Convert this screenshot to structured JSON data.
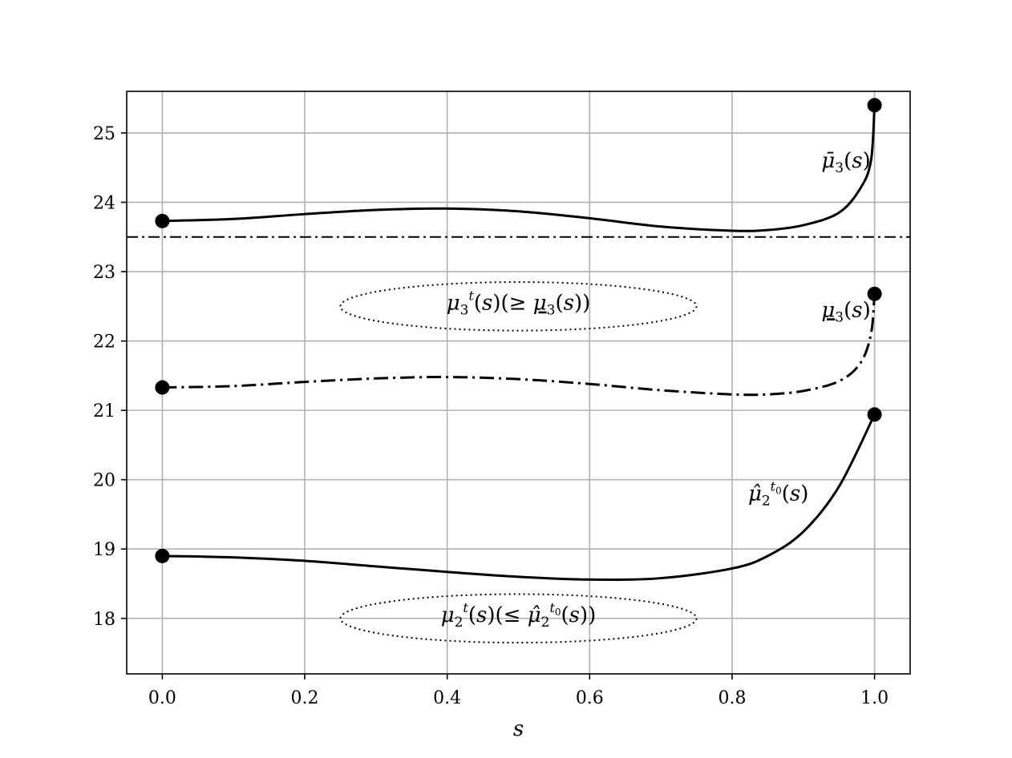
{
  "chart_data": {
    "type": "line",
    "xlabel": "s",
    "ylabel": "",
    "xlim": [
      -0.05,
      1.05
    ],
    "ylim": [
      17.2,
      25.6
    ],
    "xticks": [
      0.0,
      0.2,
      0.4,
      0.6,
      0.8,
      1.0
    ],
    "xtick_labels": [
      "0.0",
      "0.2",
      "0.4",
      "0.6",
      "0.8",
      "1.0"
    ],
    "yticks": [
      18,
      19,
      20,
      21,
      22,
      23,
      24,
      25
    ],
    "ytick_labels": [
      "18",
      "19",
      "20",
      "21",
      "22",
      "23",
      "24",
      "25"
    ],
    "grid": true,
    "series": [
      {
        "style": "solid",
        "x": [
          0.0,
          0.1,
          0.2,
          0.3,
          0.4,
          0.5,
          0.6,
          0.7,
          0.8,
          0.85,
          0.9,
          0.95,
          0.98,
          0.995,
          1.0
        ],
        "y": [
          23.73,
          23.76,
          23.83,
          23.89,
          23.91,
          23.87,
          23.77,
          23.65,
          23.59,
          23.6,
          23.67,
          23.85,
          24.2,
          24.6,
          25.4
        ],
        "endpoints": [
          [
            0.0,
            23.73
          ],
          [
            1.0,
            25.4
          ]
        ]
      },
      {
        "style": "dashdot",
        "x": [
          0.0,
          0.1,
          0.2,
          0.3,
          0.4,
          0.5,
          0.6,
          0.7,
          0.8,
          0.85,
          0.9,
          0.95,
          0.98,
          0.995,
          1.0
        ],
        "y": [
          21.33,
          21.35,
          21.41,
          21.46,
          21.48,
          21.45,
          21.38,
          21.29,
          21.23,
          21.23,
          21.28,
          21.42,
          21.68,
          22.1,
          22.68
        ],
        "endpoints": [
          [
            0.0,
            21.33
          ],
          [
            1.0,
            22.68
          ]
        ]
      },
      {
        "style": "solid",
        "x": [
          0.0,
          0.1,
          0.2,
          0.3,
          0.4,
          0.5,
          0.6,
          0.7,
          0.8,
          0.85,
          0.9,
          0.95,
          1.0
        ],
        "y": [
          18.9,
          18.88,
          18.83,
          18.75,
          18.67,
          18.6,
          18.56,
          18.58,
          18.72,
          18.9,
          19.25,
          19.9,
          20.94
        ],
        "endpoints": [
          [
            0.0,
            18.9
          ],
          [
            1.0,
            20.94
          ]
        ]
      }
    ],
    "hlines": [
      {
        "y": 23.5,
        "style": "dashdot"
      }
    ],
    "ellipses": [
      {
        "cx": 0.5,
        "cy": 22.5,
        "rx": 0.25,
        "ry": 0.35,
        "style": "dotted"
      },
      {
        "cx": 0.5,
        "cy": 18.0,
        "rx": 0.25,
        "ry": 0.35,
        "style": "dotted"
      }
    ],
    "annotations": [
      {
        "name": "annotation-mu-bar-3",
        "text": "μ̄₃(s)",
        "x": 0.96,
        "y": 24.5
      },
      {
        "name": "annotation-mu-3-underline",
        "text": "μ₃(s)",
        "x": 0.96,
        "y": 22.35
      },
      {
        "name": "annotation-mu-hat-2",
        "text": "μ̂₂^{t₀}(s)",
        "x": 0.865,
        "y": 19.7
      },
      {
        "name": "annotation-mu-3-t",
        "text": "μ₃ᵗ(s)(≥ μ₃(s))",
        "x": 0.5,
        "y": 22.45
      },
      {
        "name": "annotation-mu-2-t",
        "text": "μ₂ᵗ(s)(≤ μ̂₂^{t₀}(s))",
        "x": 0.5,
        "y": 17.95
      }
    ]
  }
}
